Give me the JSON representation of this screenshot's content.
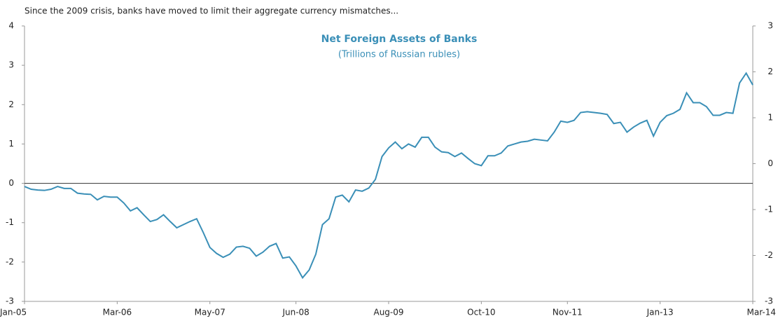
{
  "chart_data": {
    "type": "line",
    "title": "Since the 2009 crisis, banks have moved to limit their aggregate  currency mismatches...",
    "subtitle": "Net Foreign Assets of Banks",
    "units": "(Trillions of Russian rubles)",
    "categories": [
      "Jan-05",
      null,
      null,
      null,
      null,
      null,
      null,
      null,
      null,
      null,
      null,
      null,
      null,
      null,
      "Mar-06",
      null,
      null,
      null,
      null,
      null,
      null,
      null,
      null,
      null,
      null,
      null,
      null,
      null,
      "May-07",
      null,
      null,
      null,
      null,
      null,
      null,
      null,
      null,
      null,
      null,
      null,
      null,
      "Jun-08",
      null,
      null,
      null,
      null,
      null,
      null,
      null,
      null,
      null,
      null,
      null,
      null,
      null,
      "Aug-09",
      null,
      null,
      null,
      null,
      null,
      null,
      null,
      null,
      null,
      null,
      null,
      null,
      null,
      "Oct-10",
      null,
      null,
      null,
      null,
      null,
      null,
      null,
      null,
      null,
      null,
      null,
      null,
      "Nov-11",
      null,
      null,
      null,
      null,
      null,
      null,
      null,
      null,
      null,
      null,
      null,
      null,
      null,
      "Jan-13",
      null,
      null,
      null,
      null,
      null,
      null,
      null,
      null,
      null,
      null,
      null,
      null,
      null,
      "Mar-14"
    ],
    "series": [
      {
        "name": "Net Foreign Assets of Banks",
        "color": "#3a8fb7",
        "values": [
          -0.08,
          -0.15,
          -0.17,
          -0.18,
          -0.15,
          -0.08,
          -0.13,
          -0.13,
          -0.25,
          -0.27,
          -0.28,
          -0.42,
          -0.33,
          -0.35,
          -0.35,
          -0.5,
          -0.7,
          -0.62,
          -0.8,
          -0.97,
          -0.92,
          -0.8,
          -0.97,
          -1.13,
          -1.05,
          -0.97,
          -0.9,
          -1.25,
          -1.63,
          -1.78,
          -1.88,
          -1.8,
          -1.62,
          -1.6,
          -1.65,
          -1.85,
          -1.75,
          -1.6,
          -1.53,
          -1.9,
          -1.87,
          -2.1,
          -2.4,
          -2.2,
          -1.8,
          -1.05,
          -0.9,
          -0.35,
          -0.3,
          -0.47,
          -0.17,
          -0.2,
          -0.12,
          0.1,
          0.68,
          0.9,
          1.05,
          0.88,
          1.0,
          0.92,
          1.17,
          1.17,
          0.92,
          0.8,
          0.78,
          0.68,
          0.77,
          0.63,
          0.5,
          0.45,
          0.7,
          0.7,
          0.77,
          0.95,
          1.0,
          1.05,
          1.07,
          1.12,
          1.1,
          1.08,
          1.3,
          1.58,
          1.55,
          1.6,
          1.8,
          1.82,
          1.8,
          1.78,
          1.75,
          1.52,
          1.55,
          1.3,
          1.43,
          1.53,
          1.6,
          1.2,
          1.55,
          1.72,
          1.78,
          1.88,
          2.3,
          2.05,
          2.05,
          1.95,
          1.73,
          1.73,
          1.8,
          1.78,
          2.55,
          2.8,
          2.5
        ]
      }
    ],
    "ylim": [
      -3,
      4
    ],
    "yticks": [
      -3,
      -2,
      -1,
      0,
      1,
      2,
      3,
      4
    ],
    "y2lim": [
      -3,
      3
    ],
    "y2ticks": [
      -3,
      -2,
      -1,
      0,
      1,
      2,
      3
    ]
  }
}
